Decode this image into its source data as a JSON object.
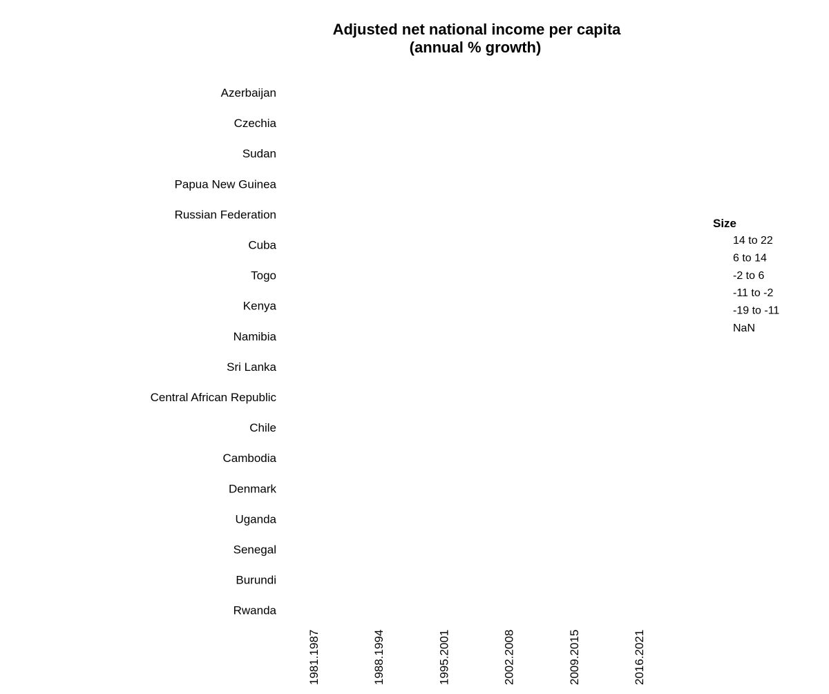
{
  "chart_data": {
    "type": "scatter",
    "title": "Adjusted net national income per capita",
    "subtitle": "(annual % growth)",
    "rows": [
      "Azerbaijan",
      "Czechia",
      "Sudan",
      "Papua New Guinea",
      "Russian Federation",
      "Cuba",
      "Togo",
      "Kenya",
      "Namibia",
      "Sri Lanka",
      "Central African Republic",
      "Chile",
      "Cambodia",
      "Denmark",
      "Uganda",
      "Senegal",
      "Burundi",
      "Rwanda"
    ],
    "columns": [
      "1981.1987",
      "1988.1994",
      "1995.2001",
      "2002.2008",
      "2009.2015",
      "2016.2021"
    ],
    "values": [],
    "legend": {
      "title": "Size",
      "items": [
        "14 to 22",
        "6 to 14",
        "-2 to 6",
        "-11 to -2",
        "-19 to -11",
        "NaN"
      ]
    },
    "xlabel": "",
    "ylabel": "",
    "grid": false
  }
}
